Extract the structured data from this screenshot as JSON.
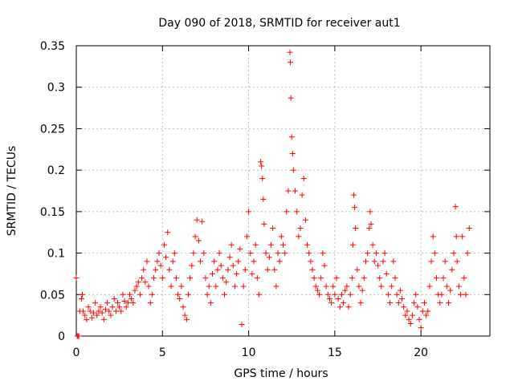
{
  "chart_data": {
    "type": "scatter",
    "title": "Day 090 of 2018, SRMTID for receiver aut1",
    "xlabel": "GPS time / hours",
    "ylabel": "SRMTID / TECUs",
    "xlim": [
      0,
      24
    ],
    "ylim": [
      0,
      0.35
    ],
    "grid": true,
    "marker": "+",
    "color": "#ff0000",
    "xticks": [
      0,
      5,
      10,
      15,
      20
    ],
    "yticks": [
      0,
      0.05,
      0.1,
      0.15,
      0.2,
      0.25,
      0.3,
      0.35
    ],
    "xtick_labels": [
      "0",
      "5",
      "10",
      "15",
      "20"
    ],
    "ytick_labels": [
      "0",
      "0.05",
      "0.1",
      "0.15",
      "0.2",
      "0.25",
      "0.3",
      "0.35"
    ],
    "series": [
      {
        "name": "aut1",
        "points": [
          [
            0.0,
            0.07
          ],
          [
            0.05,
            0.0
          ],
          [
            0.1,
            0.0
          ],
          [
            0.15,
            0.0
          ],
          [
            0.2,
            0.03
          ],
          [
            0.3,
            0.045
          ],
          [
            0.35,
            0.05
          ],
          [
            0.4,
            0.03
          ],
          [
            0.5,
            0.025
          ],
          [
            0.6,
            0.02
          ],
          [
            0.7,
            0.035
          ],
          [
            0.8,
            0.03
          ],
          [
            0.9,
            0.022
          ],
          [
            1.0,
            0.028
          ],
          [
            1.1,
            0.04
          ],
          [
            1.2,
            0.025
          ],
          [
            1.3,
            0.03
          ],
          [
            1.4,
            0.035
          ],
          [
            1.5,
            0.028
          ],
          [
            1.6,
            0.02
          ],
          [
            1.7,
            0.032
          ],
          [
            1.8,
            0.04
          ],
          [
            1.9,
            0.03
          ],
          [
            2.0,
            0.025
          ],
          [
            2.1,
            0.035
          ],
          [
            2.2,
            0.045
          ],
          [
            2.3,
            0.03
          ],
          [
            2.4,
            0.04
          ],
          [
            2.5,
            0.035
          ],
          [
            2.6,
            0.03
          ],
          [
            2.7,
            0.05
          ],
          [
            2.8,
            0.042
          ],
          [
            2.9,
            0.035
          ],
          [
            3.0,
            0.04
          ],
          [
            3.1,
            0.05
          ],
          [
            3.2,
            0.045
          ],
          [
            3.3,
            0.04
          ],
          [
            3.4,
            0.055
          ],
          [
            3.5,
            0.06
          ],
          [
            3.6,
            0.065
          ],
          [
            3.7,
            0.05
          ],
          [
            3.8,
            0.07
          ],
          [
            3.9,
            0.08
          ],
          [
            4.0,
            0.065
          ],
          [
            4.1,
            0.09
          ],
          [
            4.2,
            0.06
          ],
          [
            4.3,
            0.04
          ],
          [
            4.4,
            0.05
          ],
          [
            4.5,
            0.07
          ],
          [
            4.6,
            0.08
          ],
          [
            4.7,
            0.09
          ],
          [
            4.8,
            0.1
          ],
          [
            4.9,
            0.085
          ],
          [
            5.0,
            0.07
          ],
          [
            5.1,
            0.11
          ],
          [
            5.2,
            0.095
          ],
          [
            5.3,
            0.125
          ],
          [
            5.4,
            0.08
          ],
          [
            5.5,
            0.06
          ],
          [
            5.6,
            0.09
          ],
          [
            5.7,
            0.1
          ],
          [
            5.8,
            0.07
          ],
          [
            5.9,
            0.05
          ],
          [
            6.0,
            0.045
          ],
          [
            6.1,
            0.06
          ],
          [
            6.2,
            0.035
          ],
          [
            6.3,
            0.025
          ],
          [
            6.4,
            0.02
          ],
          [
            6.5,
            0.05
          ],
          [
            6.6,
            0.07
          ],
          [
            6.7,
            0.085
          ],
          [
            6.8,
            0.1
          ],
          [
            6.9,
            0.12
          ],
          [
            7.0,
            0.14
          ],
          [
            7.1,
            0.115
          ],
          [
            7.2,
            0.09
          ],
          [
            7.3,
            0.138
          ],
          [
            7.4,
            0.1
          ],
          [
            7.5,
            0.07
          ],
          [
            7.6,
            0.05
          ],
          [
            7.7,
            0.06
          ],
          [
            7.8,
            0.04
          ],
          [
            7.9,
            0.075
          ],
          [
            8.0,
            0.09
          ],
          [
            8.1,
            0.06
          ],
          [
            8.2,
            0.08
          ],
          [
            8.3,
            0.1
          ],
          [
            8.4,
            0.085
          ],
          [
            8.5,
            0.07
          ],
          [
            8.6,
            0.05
          ],
          [
            8.7,
            0.065
          ],
          [
            8.8,
            0.08
          ],
          [
            8.9,
            0.095
          ],
          [
            9.0,
            0.11
          ],
          [
            9.1,
            0.085
          ],
          [
            9.2,
            0.06
          ],
          [
            9.3,
            0.075
          ],
          [
            9.4,
            0.09
          ],
          [
            9.5,
            0.105
          ],
          [
            9.6,
            0.014
          ],
          [
            9.7,
            0.06
          ],
          [
            9.8,
            0.08
          ],
          [
            9.9,
            0.12
          ],
          [
            10.0,
            0.15
          ],
          [
            10.1,
            0.1
          ],
          [
            10.2,
            0.075
          ],
          [
            10.3,
            0.09
          ],
          [
            10.4,
            0.11
          ],
          [
            10.5,
            0.07
          ],
          [
            10.6,
            0.05
          ],
          [
            10.7,
            0.21
          ],
          [
            10.75,
            0.205
          ],
          [
            10.8,
            0.19
          ],
          [
            10.85,
            0.165
          ],
          [
            10.9,
            0.135
          ],
          [
            11.0,
            0.1
          ],
          [
            11.1,
            0.08
          ],
          [
            11.2,
            0.095
          ],
          [
            11.3,
            0.11
          ],
          [
            11.4,
            0.13
          ],
          [
            11.5,
            0.08
          ],
          [
            11.6,
            0.06
          ],
          [
            11.7,
            0.1
          ],
          [
            11.8,
            0.09
          ],
          [
            11.9,
            0.12
          ],
          [
            12.0,
            0.11
          ],
          [
            12.1,
            0.1
          ],
          [
            12.2,
            0.15
          ],
          [
            12.3,
            0.175
          ],
          [
            12.4,
            0.342
          ],
          [
            12.42,
            0.33
          ],
          [
            12.45,
            0.287
          ],
          [
            12.5,
            0.24
          ],
          [
            12.55,
            0.22
          ],
          [
            12.6,
            0.2
          ],
          [
            12.7,
            0.175
          ],
          [
            12.8,
            0.15
          ],
          [
            12.9,
            0.12
          ],
          [
            13.0,
            0.13
          ],
          [
            13.1,
            0.17
          ],
          [
            13.2,
            0.19
          ],
          [
            13.3,
            0.14
          ],
          [
            13.4,
            0.11
          ],
          [
            13.5,
            0.1
          ],
          [
            13.6,
            0.09
          ],
          [
            13.7,
            0.08
          ],
          [
            13.8,
            0.07
          ],
          [
            13.9,
            0.06
          ],
          [
            14.0,
            0.055
          ],
          [
            14.1,
            0.05
          ],
          [
            14.2,
            0.07
          ],
          [
            14.3,
            0.1
          ],
          [
            14.4,
            0.085
          ],
          [
            14.5,
            0.06
          ],
          [
            14.6,
            0.05
          ],
          [
            14.7,
            0.045
          ],
          [
            14.8,
            0.04
          ],
          [
            14.9,
            0.06
          ],
          [
            15.0,
            0.05
          ],
          [
            15.1,
            0.07
          ],
          [
            15.2,
            0.045
          ],
          [
            15.3,
            0.035
          ],
          [
            15.4,
            0.05
          ],
          [
            15.5,
            0.04
          ],
          [
            15.6,
            0.055
          ],
          [
            15.7,
            0.06
          ],
          [
            15.8,
            0.035
          ],
          [
            15.9,
            0.05
          ],
          [
            16.0,
            0.07
          ],
          [
            16.05,
            0.11
          ],
          [
            16.1,
            0.17
          ],
          [
            16.15,
            0.155
          ],
          [
            16.2,
            0.13
          ],
          [
            16.3,
            0.08
          ],
          [
            16.4,
            0.06
          ],
          [
            16.5,
            0.04
          ],
          [
            16.6,
            0.055
          ],
          [
            16.7,
            0.07
          ],
          [
            16.8,
            0.09
          ],
          [
            16.9,
            0.1
          ],
          [
            17.0,
            0.13
          ],
          [
            17.05,
            0.15
          ],
          [
            17.1,
            0.135
          ],
          [
            17.2,
            0.11
          ],
          [
            17.3,
            0.09
          ],
          [
            17.4,
            0.1
          ],
          [
            17.5,
            0.085
          ],
          [
            17.6,
            0.07
          ],
          [
            17.7,
            0.06
          ],
          [
            17.8,
            0.09
          ],
          [
            17.9,
            0.1
          ],
          [
            18.0,
            0.075
          ],
          [
            18.1,
            0.05
          ],
          [
            18.2,
            0.04
          ],
          [
            18.3,
            0.06
          ],
          [
            18.4,
            0.09
          ],
          [
            18.5,
            0.07
          ],
          [
            18.6,
            0.05
          ],
          [
            18.7,
            0.04
          ],
          [
            18.8,
            0.055
          ],
          [
            18.9,
            0.045
          ],
          [
            19.0,
            0.035
          ],
          [
            19.1,
            0.025
          ],
          [
            19.2,
            0.03
          ],
          [
            19.3,
            0.02
          ],
          [
            19.4,
            0.015
          ],
          [
            19.5,
            0.025
          ],
          [
            19.6,
            0.04
          ],
          [
            19.7,
            0.05
          ],
          [
            19.8,
            0.035
          ],
          [
            19.9,
            0.02
          ],
          [
            20.0,
            0.01
          ],
          [
            20.1,
            0.03
          ],
          [
            20.2,
            0.04
          ],
          [
            20.3,
            0.025
          ],
          [
            20.4,
            0.03
          ],
          [
            20.5,
            0.06
          ],
          [
            20.6,
            0.09
          ],
          [
            20.7,
            0.12
          ],
          [
            20.8,
            0.1
          ],
          [
            20.9,
            0.07
          ],
          [
            21.0,
            0.05
          ],
          [
            21.1,
            0.04
          ],
          [
            21.2,
            0.05
          ],
          [
            21.3,
            0.07
          ],
          [
            21.4,
            0.09
          ],
          [
            21.5,
            0.06
          ],
          [
            21.6,
            0.04
          ],
          [
            21.7,
            0.055
          ],
          [
            21.8,
            0.08
          ],
          [
            21.9,
            0.1
          ],
          [
            22.0,
            0.156
          ],
          [
            22.05,
            0.12
          ],
          [
            22.1,
            0.09
          ],
          [
            22.2,
            0.06
          ],
          [
            22.3,
            0.05
          ],
          [
            22.4,
            0.12
          ],
          [
            22.5,
            0.07
          ],
          [
            22.6,
            0.05
          ],
          [
            22.7,
            0.1
          ],
          [
            22.8,
            0.13
          ]
        ]
      }
    ]
  },
  "colors": {
    "series": "#ff0000",
    "grid": "#a0a0a0",
    "frame": "#000000",
    "background": "#ffffff"
  }
}
